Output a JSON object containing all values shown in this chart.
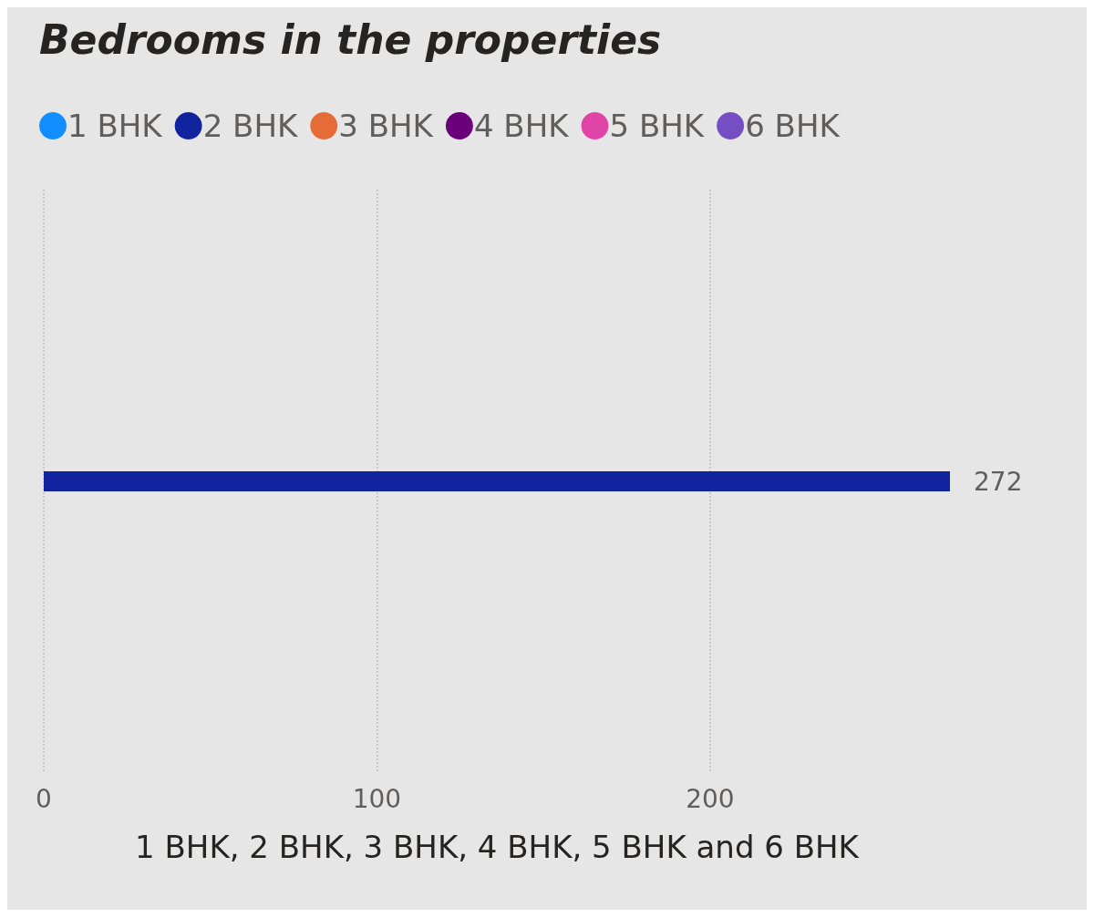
{
  "chart_data": {
    "type": "bar",
    "orientation": "horizontal",
    "title": "Bedrooms in the properties",
    "xlabel": "1 BHK, 2 BHK, 3 BHK, 4 BHK, 5 BHK and 6 BHK",
    "categories": [
      null
    ],
    "series": [
      {
        "name": "1 BHK",
        "color": "#118dff",
        "values": [
          null
        ]
      },
      {
        "name": "2 BHK",
        "color": "#12239e",
        "values": [
          272
        ]
      },
      {
        "name": "3 BHK",
        "color": "#e66c37",
        "values": [
          null
        ]
      },
      {
        "name": "4 BHK",
        "color": "#6b007b",
        "values": [
          null
        ]
      },
      {
        "name": "5 BHK",
        "color": "#e044a7",
        "values": [
          null
        ]
      },
      {
        "name": "6 BHK",
        "color": "#744ec2",
        "values": [
          null
        ]
      }
    ],
    "xlim": [
      0,
      272
    ],
    "xticks": [
      0,
      100,
      200
    ],
    "grid": "x",
    "legend": "top left",
    "data_labels": true,
    "tick_labels": "x"
  }
}
